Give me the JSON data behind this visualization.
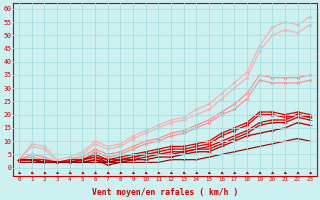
{
  "background_color": "#cdf0f0",
  "grid_color": "#aadddd",
  "x_ticks": [
    0,
    1,
    2,
    3,
    4,
    5,
    6,
    7,
    8,
    9,
    10,
    11,
    12,
    13,
    14,
    15,
    16,
    17,
    18,
    19,
    20,
    21,
    22,
    23
  ],
  "xlabel": "Vent moyen/en rafales ( km/h )",
  "ylim": [
    -3,
    62
  ],
  "yticks": [
    0,
    5,
    10,
    15,
    20,
    25,
    30,
    35,
    40,
    45,
    50,
    55,
    60
  ],
  "series": [
    {
      "color": "#ffaaaa",
      "linewidth": 0.8,
      "marker": "D",
      "markersize": 1.5,
      "data": [
        3,
        9,
        8,
        3,
        4,
        6,
        10,
        8,
        9,
        12,
        14,
        16,
        18,
        19,
        22,
        24,
        28,
        32,
        36,
        46,
        53,
        55,
        54,
        57
      ]
    },
    {
      "color": "#ffaaaa",
      "linewidth": 0.8,
      "marker": "D",
      "markersize": 1.5,
      "data": [
        3,
        8,
        7,
        2,
        3,
        5,
        9,
        7,
        8,
        11,
        13,
        15,
        17,
        18,
        20,
        22,
        26,
        30,
        34,
        44,
        50,
        52,
        51,
        54
      ]
    },
    {
      "color": "#ff8888",
      "linewidth": 0.8,
      "marker": "D",
      "markersize": 1.5,
      "data": [
        3,
        5,
        4,
        2,
        3,
        4,
        7,
        5,
        6,
        8,
        10,
        11,
        13,
        14,
        16,
        18,
        21,
        24,
        28,
        35,
        34,
        34,
        34,
        35
      ]
    },
    {
      "color": "#ff8888",
      "linewidth": 0.8,
      "marker": "D",
      "markersize": 1.5,
      "data": [
        3,
        4,
        3,
        2,
        2,
        3,
        6,
        4,
        5,
        7,
        9,
        10,
        12,
        13,
        15,
        17,
        20,
        22,
        26,
        33,
        32,
        32,
        32,
        33
      ]
    },
    {
      "color": "#dd0000",
      "linewidth": 0.9,
      "marker": "D",
      "markersize": 1.5,
      "data": [
        3,
        3,
        3,
        2,
        3,
        3,
        5,
        3,
        4,
        5,
        6,
        7,
        8,
        8,
        9,
        10,
        13,
        15,
        17,
        21,
        21,
        20,
        21,
        20
      ]
    },
    {
      "color": "#dd0000",
      "linewidth": 0.9,
      "marker": "D",
      "markersize": 1.5,
      "data": [
        3,
        3,
        2,
        2,
        2,
        3,
        4,
        3,
        3,
        4,
        5,
        6,
        7,
        7,
        8,
        9,
        12,
        14,
        16,
        20,
        20,
        19,
        20,
        19
      ]
    },
    {
      "color": "#cc0000",
      "linewidth": 0.9,
      "marker": "+",
      "markersize": 2.5,
      "data": [
        3,
        3,
        2,
        2,
        2,
        3,
        4,
        2,
        3,
        4,
        5,
        5,
        6,
        6,
        7,
        8,
        10,
        12,
        14,
        17,
        18,
        18,
        20,
        19
      ]
    },
    {
      "color": "#cc0000",
      "linewidth": 0.9,
      "marker": "+",
      "markersize": 2.5,
      "data": [
        3,
        3,
        2,
        2,
        2,
        2,
        3,
        2,
        3,
        3,
        4,
        5,
        5,
        6,
        7,
        7,
        9,
        11,
        13,
        16,
        17,
        17,
        19,
        18
      ]
    },
    {
      "color": "#aa0000",
      "linewidth": 0.9,
      "marker": "+",
      "markersize": 2.5,
      "data": [
        3,
        3,
        2,
        2,
        2,
        2,
        3,
        1,
        2,
        3,
        3,
        4,
        4,
        5,
        6,
        6,
        8,
        10,
        12,
        13,
        14,
        15,
        17,
        16
      ]
    },
    {
      "color": "#880000",
      "linewidth": 0.8,
      "marker": "+",
      "markersize": 2.0,
      "data": [
        2,
        2,
        2,
        2,
        2,
        2,
        2,
        2,
        2,
        2,
        2,
        2,
        3,
        3,
        3,
        4,
        5,
        6,
        7,
        8,
        9,
        10,
        11,
        10
      ]
    }
  ],
  "arrow_row": {
    "y": -2.0,
    "color": "#cc0000"
  }
}
